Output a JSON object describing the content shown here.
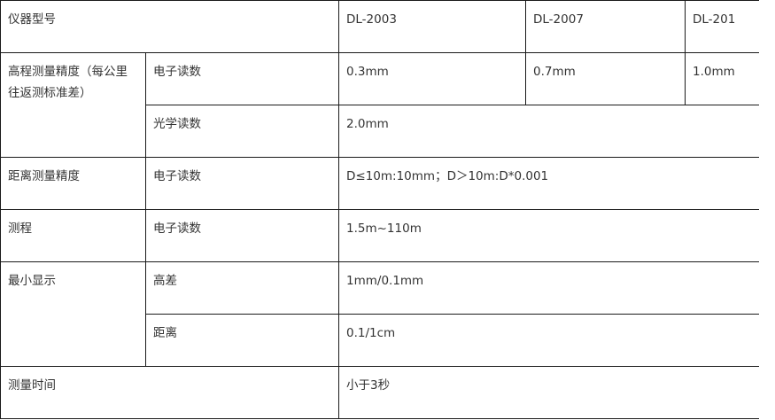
{
  "header": {
    "label": "仪器型号",
    "models": [
      "DL-2003",
      "DL-2007",
      "DL-201"
    ]
  },
  "rows": {
    "height_precision": {
      "label": "高程测量精度（每公里往返测标准差）",
      "electronic_label": "电子读数",
      "electronic_values": [
        "0.3mm",
        "0.7mm",
        "1.0mm"
      ],
      "optical_label": "光学读数",
      "optical_value": "2.0mm"
    },
    "distance_precision": {
      "label": "距离测量精度",
      "sub_label": "电子读数",
      "value": "D≤10m:10mm；D＞10m:D*0.001"
    },
    "range": {
      "label": "测程",
      "sub_label": "电子读数",
      "value": "1.5m~110m"
    },
    "min_display": {
      "label": "最小显示",
      "height_label": "高差",
      "height_value": "1mm/0.1mm",
      "distance_label": "距离",
      "distance_value": "0.1/1cm"
    },
    "measure_time": {
      "label": "测量时间",
      "value": "小于3秒"
    }
  }
}
